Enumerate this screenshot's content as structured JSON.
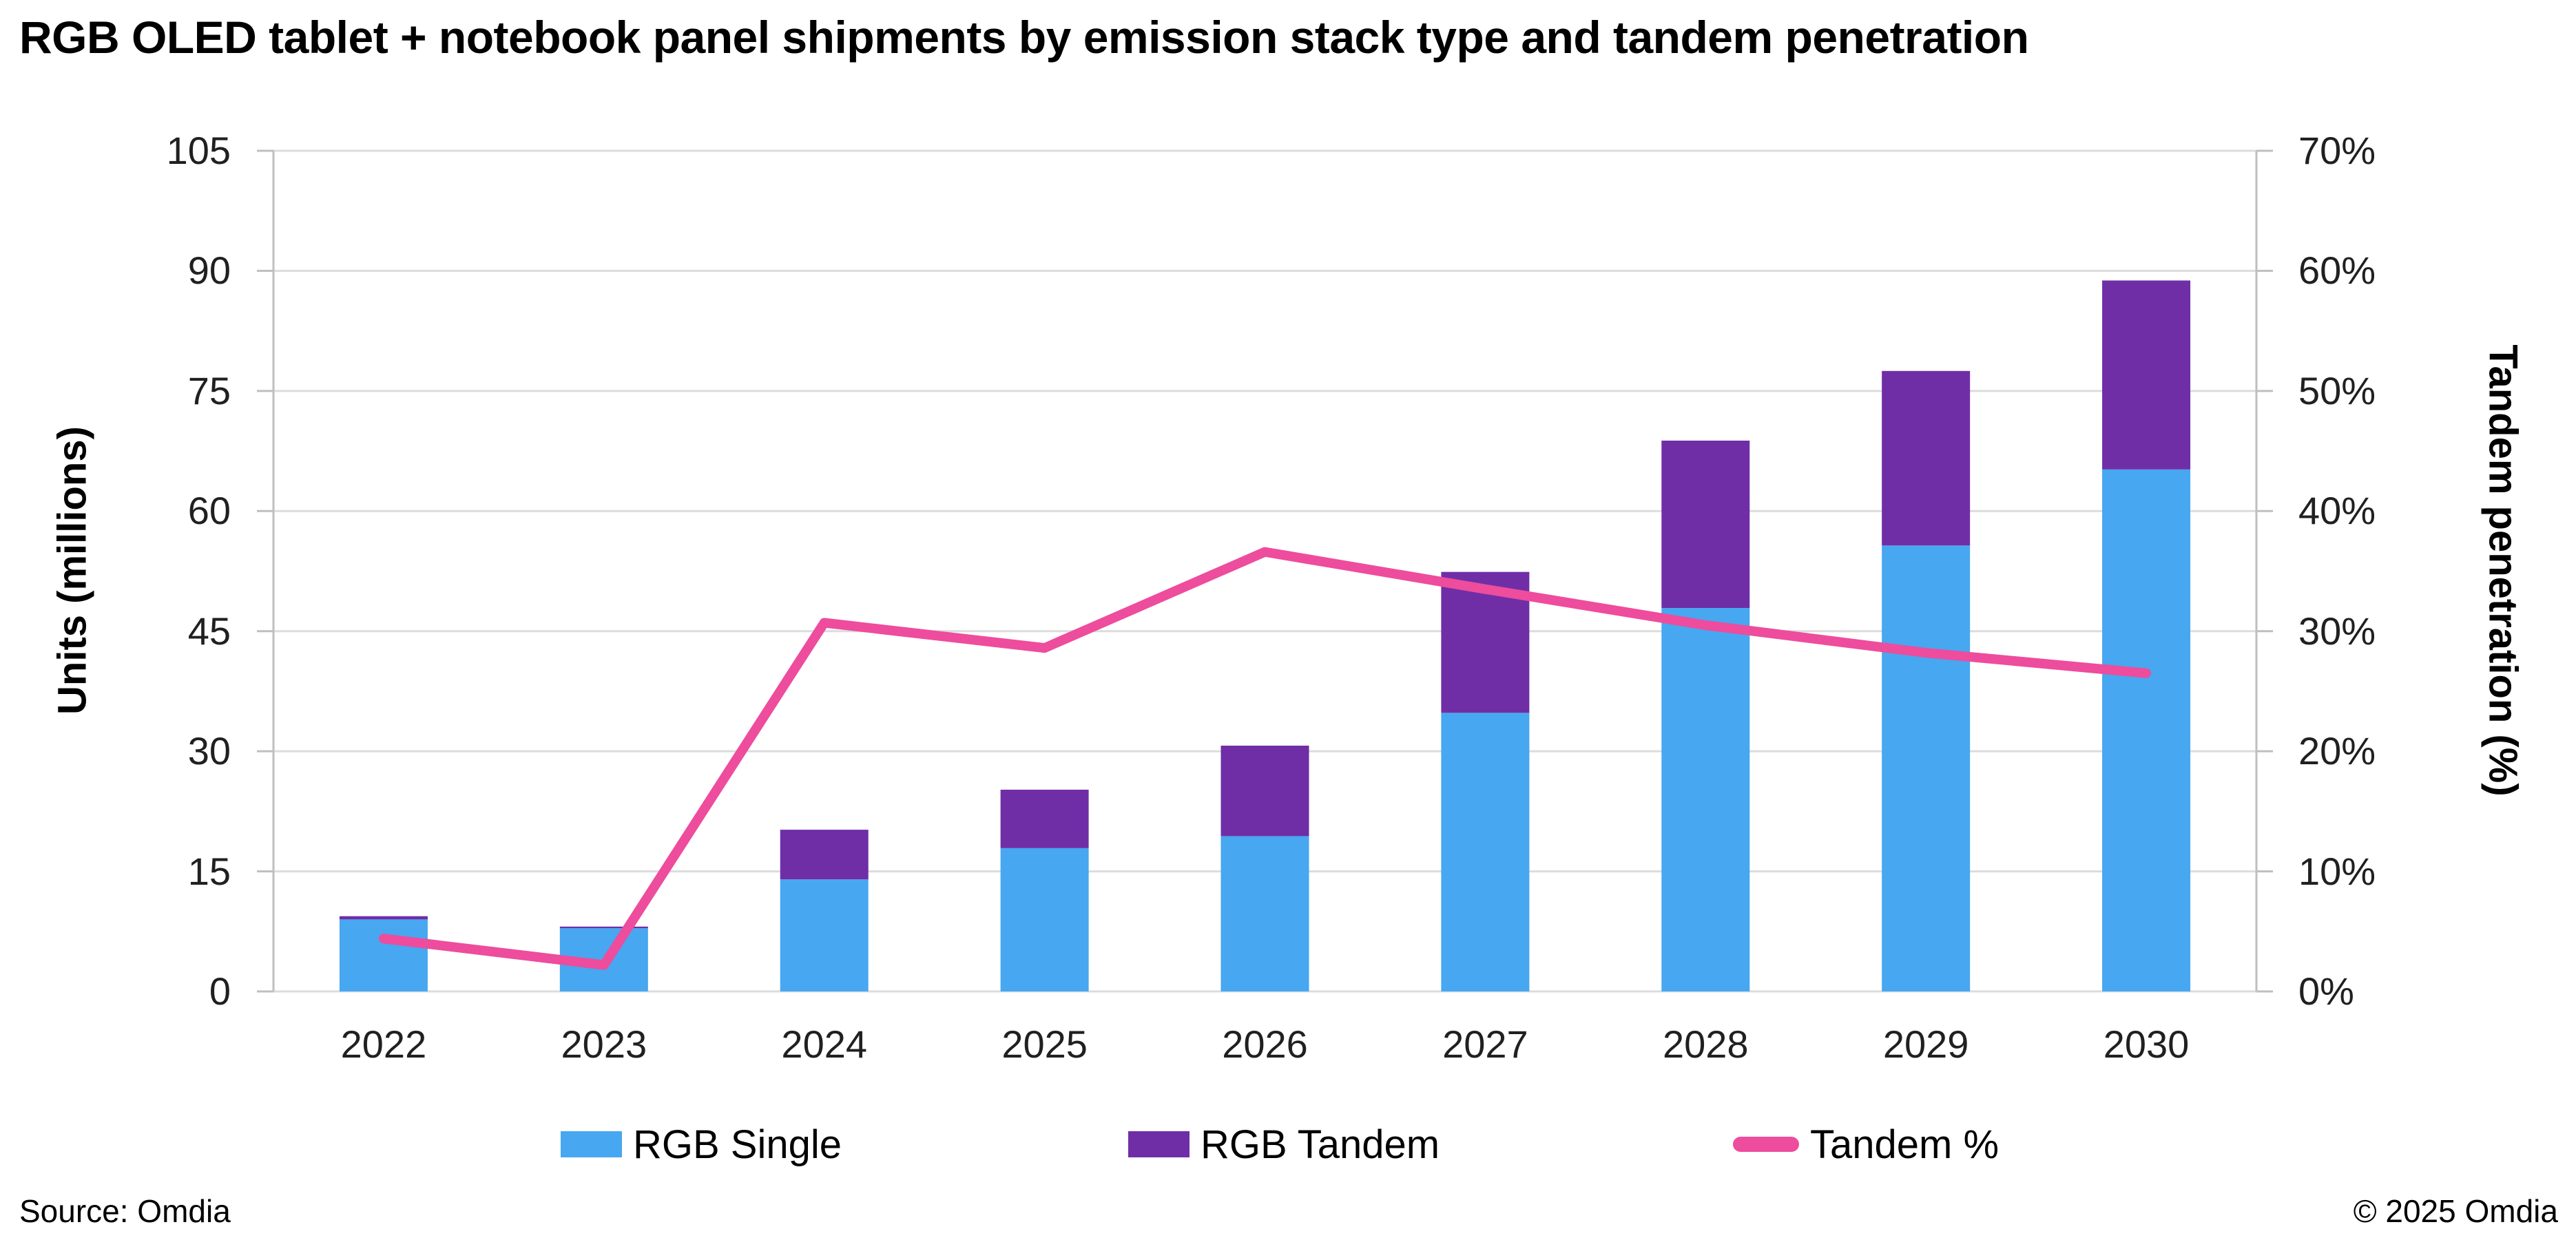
{
  "title": "RGB OLED tablet + notebook panel shipments by emission stack type and tandem penetration",
  "footer": {
    "source": "Source: Omdia",
    "copyright": "© 2025 Omdia"
  },
  "colors": {
    "single_blue": "#47A7F0",
    "tandem_purple": "#6F2EA6",
    "line_pink": "#EE4C9D",
    "gridline": "#DCDCDC",
    "axis_line": "#BFBFBF",
    "tick_text": "#202020"
  },
  "chart_data": {
    "type": "bar",
    "subtype": "stacked-bar-with-line-combo",
    "categories": [
      "2022",
      "2023",
      "2024",
      "2025",
      "2026",
      "2027",
      "2028",
      "2029",
      "2030"
    ],
    "series": [
      {
        "name": "RGB Single",
        "type": "bar",
        "stack": "shipments",
        "axis": "left",
        "color": "#47A7F0",
        "values": [
          9.0,
          7.9,
          14.0,
          17.9,
          19.4,
          34.8,
          47.9,
          55.7,
          65.2
        ]
      },
      {
        "name": "RGB Tandem",
        "type": "bar",
        "stack": "shipments",
        "axis": "left",
        "color": "#6F2EA6",
        "values": [
          0.4,
          0.2,
          6.2,
          7.3,
          11.3,
          17.6,
          20.9,
          21.8,
          23.6
        ]
      },
      {
        "name": "Tandem %",
        "type": "line",
        "axis": "right",
        "color": "#EE4C9D",
        "values": [
          4.4,
          2.2,
          30.7,
          28.6,
          36.6,
          33.5,
          30.5,
          28.2,
          26.5
        ]
      }
    ],
    "title": "RGB OLED tablet + notebook panel shipments by emission stack type and tandem penetration",
    "left_axis": {
      "label": "Units (millions)",
      "min": 0,
      "max": 105,
      "step": 15,
      "ticks": [
        "0",
        "15",
        "30",
        "45",
        "60",
        "75",
        "90",
        "105"
      ]
    },
    "right_axis": {
      "label": "Tandem penetration (%)",
      "min": 0,
      "max": 70,
      "step": 10,
      "ticks": [
        "0%",
        "10%",
        "20%",
        "30%",
        "40%",
        "50%",
        "60%",
        "70%"
      ]
    },
    "grid": true,
    "legend_position": "bottom"
  },
  "legend": {
    "items": [
      {
        "label": "RGB Single",
        "marker": "square",
        "color": "#47A7F0"
      },
      {
        "label": "RGB Tandem",
        "marker": "square",
        "color": "#6F2EA6"
      },
      {
        "label": "Tandem %",
        "marker": "line",
        "color": "#EE4C9D"
      }
    ]
  }
}
